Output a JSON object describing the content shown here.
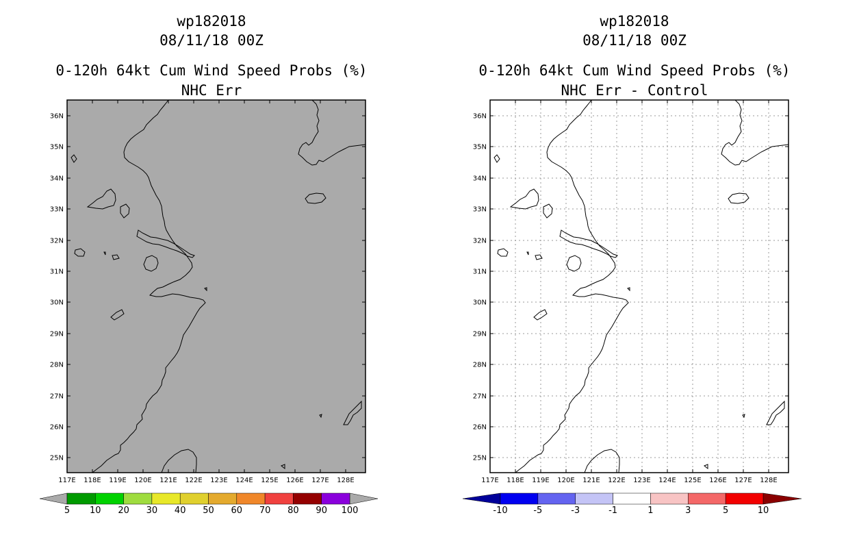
{
  "panels": [
    {
      "title_line1": "wp182018",
      "title_line2": "08/11/18 00Z",
      "title_line3": "0-120h 64kt Cum Wind Speed Probs (%)",
      "title_line4": "NHC Err",
      "map_fill": "#aaaaaa",
      "grid": false,
      "colorbar": {
        "colors": [
          "#009a00",
          "#00d200",
          "#9fdc3f",
          "#e8e829",
          "#e0d02e",
          "#e4aa2e",
          "#f0872a",
          "#f0413f",
          "#940000",
          "#8a00dc"
        ],
        "under_color": "#aaaaaa",
        "over_color": "#aaaaaa",
        "labels": [
          "5",
          "10",
          "20",
          "30",
          "40",
          "50",
          "60",
          "70",
          "80",
          "90",
          "100"
        ]
      }
    },
    {
      "title_line1": "wp182018",
      "title_line2": "08/11/18 00Z",
      "title_line3": "0-120h 64kt Cum Wind Speed Probs (%)",
      "title_line4": "NHC Err - Control",
      "map_fill": "#ffffff",
      "grid": true,
      "colorbar": {
        "colors": [
          "#0000f0",
          "#6464f0",
          "#c4c4f6",
          "#ffffff",
          "#f8c4c4",
          "#f46868",
          "#f20000"
        ],
        "under_color": "#00009a",
        "over_color": "#8a0000",
        "labels": [
          "-10",
          "-5",
          "-3",
          "-1",
          "1",
          "3",
          "5",
          "10"
        ]
      }
    }
  ],
  "map": {
    "lat_labels": [
      "36N",
      "35N",
      "34N",
      "33N",
      "32N",
      "31N",
      "30N",
      "29N",
      "28N",
      "27N",
      "26N",
      "25N"
    ],
    "lon_labels": [
      "117E",
      "118E",
      "119E",
      "120E",
      "121E",
      "122E",
      "123E",
      "124E",
      "125E",
      "126E",
      "127E",
      "128E"
    ]
  }
}
